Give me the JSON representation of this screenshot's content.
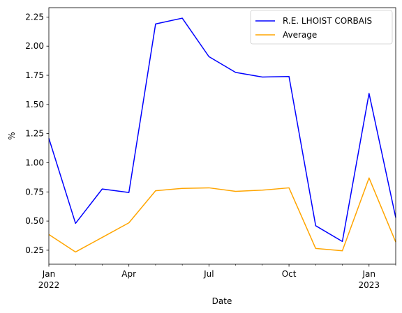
{
  "chart_data": {
    "type": "line",
    "xlabel": "Date",
    "ylabel": "%",
    "x": [
      "2022-01",
      "2022-02",
      "2022-03",
      "2022-04",
      "2022-05",
      "2022-06",
      "2022-07",
      "2022-08",
      "2022-09",
      "2022-10",
      "2022-11",
      "2022-12",
      "2023-01",
      "2023-02"
    ],
    "xlim": [
      "2022-01",
      "2023-02"
    ],
    "ylim": [
      0.13,
      2.33
    ],
    "yticks": [
      "0.25",
      "0.50",
      "0.75",
      "1.00",
      "1.25",
      "1.50",
      "1.75",
      "2.00",
      "2.25"
    ],
    "xticks": [
      {
        "x": "2022-01",
        "label": "Jan",
        "sublabel": "2022"
      },
      {
        "x": "2022-04",
        "label": "Apr",
        "sublabel": ""
      },
      {
        "x": "2022-07",
        "label": "Jul",
        "sublabel": ""
      },
      {
        "x": "2022-10",
        "label": "Oct",
        "sublabel": ""
      },
      {
        "x": "2023-01",
        "label": "Jan",
        "sublabel": "2023"
      }
    ],
    "minor_xticks": [
      "2022-02",
      "2022-03",
      "2022-05",
      "2022-06",
      "2022-08",
      "2022-09",
      "2022-11",
      "2022-12",
      "2023-02"
    ],
    "grid": false,
    "legend_position": "top-right",
    "series": [
      {
        "name": "R.E. LHOIST CORBAIS",
        "color": "#0000ff",
        "values": [
          1.21,
          0.48,
          0.775,
          0.745,
          2.19,
          2.24,
          1.91,
          1.775,
          1.735,
          1.74,
          0.46,
          0.325,
          1.595,
          0.53
        ]
      },
      {
        "name": "Average",
        "color": "#ffa500",
        "values": [
          0.385,
          0.235,
          0.36,
          0.485,
          0.76,
          0.78,
          0.785,
          0.755,
          0.765,
          0.785,
          0.265,
          0.245,
          0.87,
          0.32
        ]
      }
    ]
  }
}
